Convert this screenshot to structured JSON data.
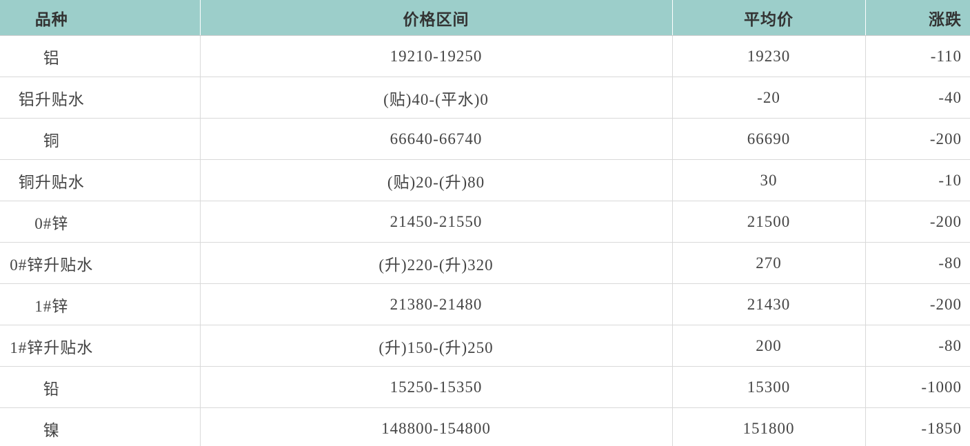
{
  "table": {
    "columns": [
      {
        "key": "variety",
        "label": "品种"
      },
      {
        "key": "price_range",
        "label": "价格区间"
      },
      {
        "key": "average_price",
        "label": "平均价"
      },
      {
        "key": "change",
        "label": "涨跌"
      }
    ],
    "rows": [
      {
        "variety": "铝",
        "price_range": "19210-19250",
        "average_price": "19230",
        "change": "-110"
      },
      {
        "variety": "铝升贴水",
        "price_range": "(贴)40-(平水)0",
        "average_price": "-20",
        "change": "-40"
      },
      {
        "variety": "铜",
        "price_range": "66640-66740",
        "average_price": "66690",
        "change": "-200"
      },
      {
        "variety": "铜升贴水",
        "price_range": "(贴)20-(升)80",
        "average_price": "30",
        "change": "-10"
      },
      {
        "variety": "0#锌",
        "price_range": "21450-21550",
        "average_price": "21500",
        "change": "-200"
      },
      {
        "variety": "0#锌升贴水",
        "price_range": "(升)220-(升)320",
        "average_price": "270",
        "change": "-80"
      },
      {
        "variety": "1#锌",
        "price_range": "21380-21480",
        "average_price": "21430",
        "change": "-200"
      },
      {
        "variety": "1#锌升贴水",
        "price_range": "(升)150-(升)250",
        "average_price": "200",
        "change": "-80"
      },
      {
        "variety": "铅",
        "price_range": "15250-15350",
        "average_price": "15300",
        "change": "-1000"
      },
      {
        "variety": "镍",
        "price_range": "148800-154800",
        "average_price": "151800",
        "change": "-1850"
      }
    ]
  },
  "colors": {
    "header_background": "#9cceca",
    "header_text": "#333333",
    "body_text": "#444444",
    "row_divider": "#d9d9d9",
    "header_cell_divider": "#ffffff"
  }
}
